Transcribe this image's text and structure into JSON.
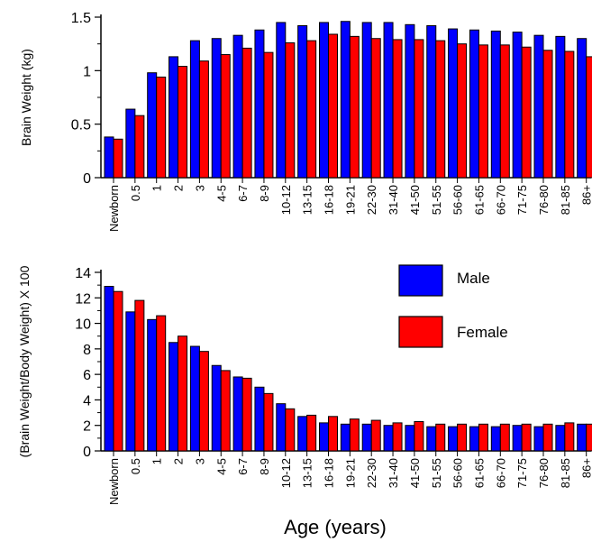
{
  "chart_data": [
    {
      "type": "bar",
      "categories": [
        "Newborn",
        "0.5",
        "1",
        "2",
        "3",
        "4-5",
        "6-7",
        "8-9",
        "10-12",
        "13-15",
        "16-18",
        "19-21",
        "22-30",
        "31-40",
        "41-50",
        "51-55",
        "56-60",
        "61-65",
        "66-70",
        "71-75",
        "76-80",
        "81-85",
        "86+"
      ],
      "ylabel": "Brain Weight (kg)",
      "xlabel": "",
      "ylim": [
        0,
        1.5
      ],
      "yticks": [
        "0",
        "0.5",
        "1",
        "1.5"
      ],
      "series": [
        {
          "name": "Male",
          "color": "#0000ff",
          "values": [
            0.38,
            0.64,
            0.98,
            1.13,
            1.28,
            1.3,
            1.33,
            1.38,
            1.45,
            1.42,
            1.45,
            1.46,
            1.45,
            1.45,
            1.43,
            1.42,
            1.39,
            1.38,
            1.37,
            1.36,
            1.33,
            1.32,
            1.3
          ]
        },
        {
          "name": "Female",
          "color": "#ff0000",
          "values": [
            0.36,
            0.58,
            0.94,
            1.04,
            1.09,
            1.15,
            1.21,
            1.17,
            1.26,
            1.28,
            1.34,
            1.32,
            1.3,
            1.29,
            1.29,
            1.28,
            1.25,
            1.24,
            1.24,
            1.22,
            1.19,
            1.18,
            1.13
          ]
        }
      ]
    },
    {
      "type": "bar",
      "categories": [
        "Newborn",
        "0.5",
        "1",
        "2",
        "3",
        "4-5",
        "6-7",
        "8-9",
        "10-12",
        "13-15",
        "16-18",
        "19-21",
        "22-30",
        "31-40",
        "41-50",
        "51-55",
        "56-60",
        "61-65",
        "66-70",
        "71-75",
        "76-80",
        "81-85",
        "86+"
      ],
      "ylabel": "(Brain Weight/Body Weight) X 100",
      "xlabel": "Age (years)",
      "ylim": [
        0,
        14
      ],
      "yticks": [
        "0",
        "2",
        "4",
        "6",
        "8",
        "10",
        "12",
        "14"
      ],
      "legend": {
        "position": "top-right",
        "entries": [
          "Male",
          "Female"
        ]
      },
      "series": [
        {
          "name": "Male",
          "color": "#0000ff",
          "values": [
            12.9,
            10.9,
            10.3,
            8.5,
            8.2,
            6.7,
            5.8,
            5.0,
            3.7,
            2.7,
            2.2,
            2.1,
            2.1,
            2.0,
            2.0,
            1.9,
            1.9,
            1.9,
            1.9,
            2.0,
            1.9,
            2.0,
            2.1
          ]
        },
        {
          "name": "Female",
          "color": "#ff0000",
          "values": [
            12.5,
            11.8,
            10.6,
            9.0,
            7.8,
            6.3,
            5.7,
            4.5,
            3.3,
            2.8,
            2.7,
            2.5,
            2.4,
            2.2,
            2.3,
            2.1,
            2.1,
            2.1,
            2.1,
            2.1,
            2.1,
            2.2,
            2.1
          ]
        }
      ]
    }
  ]
}
